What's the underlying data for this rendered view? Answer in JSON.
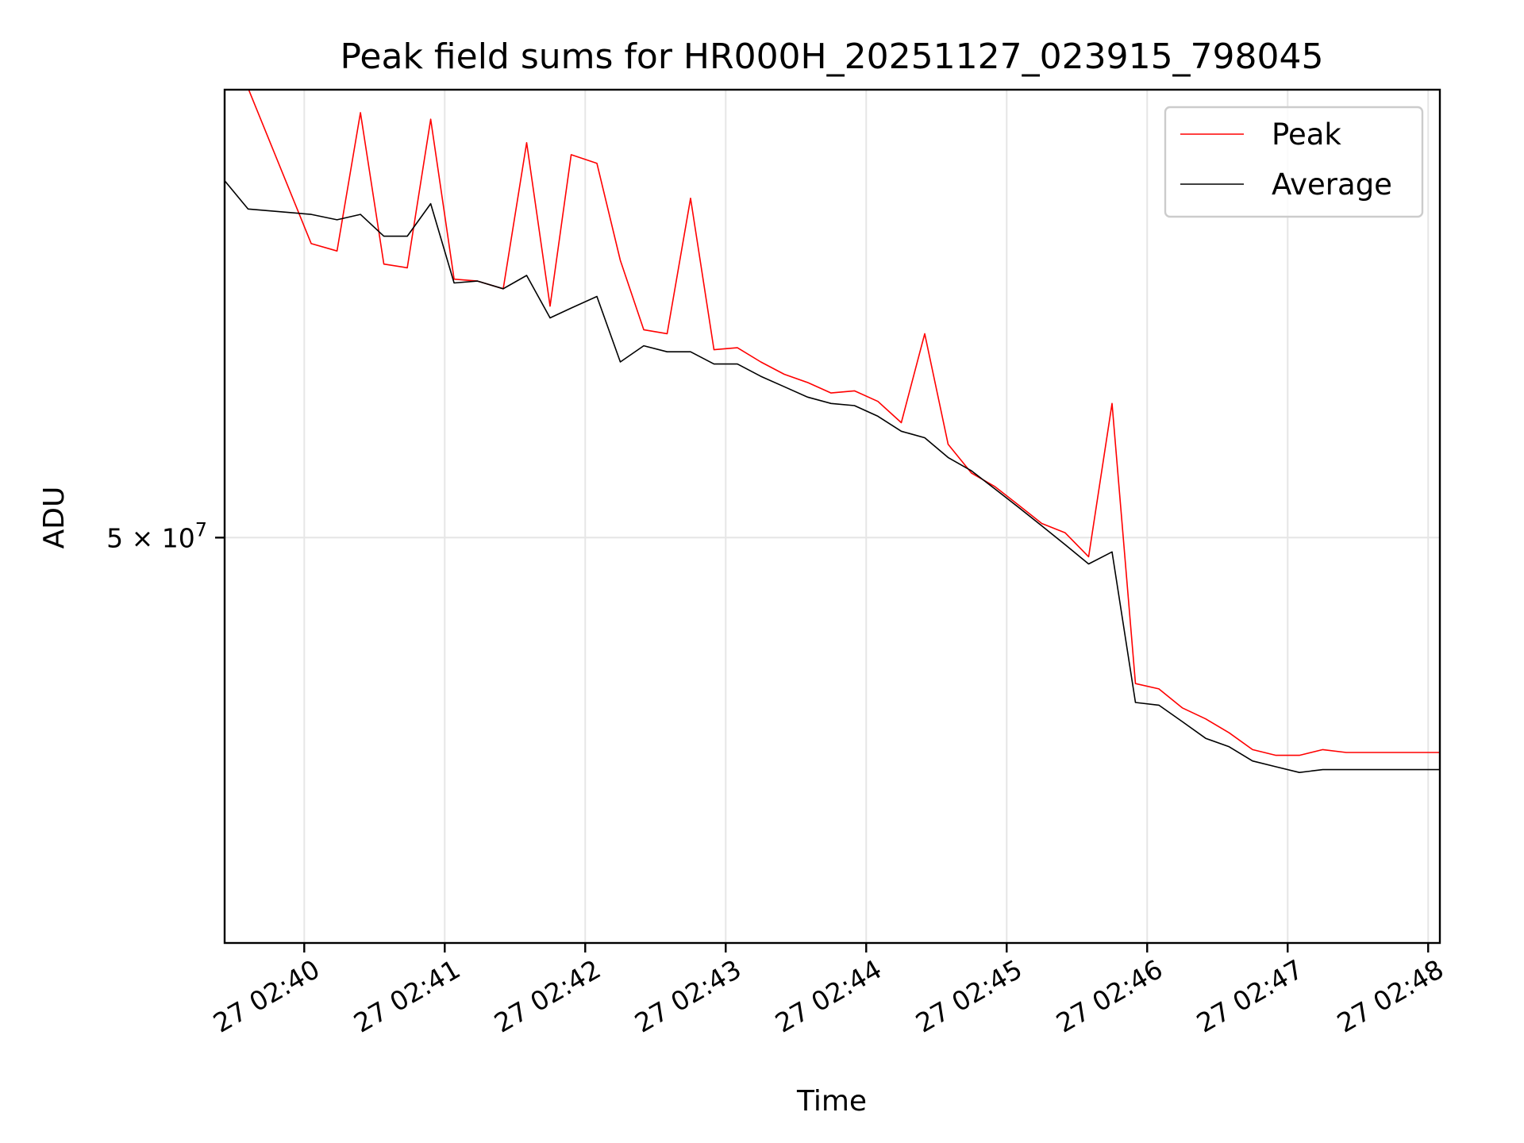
{
  "chart_data": {
    "type": "line",
    "title": "Peak field sums for HR000H_20251127_023915_798045",
    "xlabel": "Time",
    "ylabel": "ADU",
    "y_scale": "log",
    "x_ticks": [
      "27 02:40",
      "27 02:41",
      "27 02:42",
      "27 02:43",
      "27 02:44",
      "27 02:45",
      "27 02:46",
      "27 02:47",
      "27 02:48"
    ],
    "y_ticks": [
      {
        "value": 50000000,
        "label": "5 × 10^7",
        "base": "5 × 10",
        "exp": "7"
      }
    ],
    "xlim": [
      "02:39:26",
      "02:48:05"
    ],
    "ylim": [
      35500000,
      73000000
    ],
    "grid": true,
    "legend_position": "top-right",
    "x": [
      "02:39:26",
      "02:39:36",
      "02:40:03",
      "02:40:14",
      "02:40:24",
      "02:40:34",
      "02:40:44",
      "02:40:54",
      "02:41:04",
      "02:41:14",
      "02:41:25",
      "02:41:35",
      "02:41:45",
      "02:41:54",
      "02:42:05",
      "02:42:15",
      "02:42:25",
      "02:42:35",
      "02:42:45",
      "02:42:55",
      "02:43:05",
      "02:43:15",
      "02:43:25",
      "02:43:35",
      "02:43:45",
      "02:43:55",
      "02:44:05",
      "02:44:15",
      "02:44:25",
      "02:44:35",
      "02:44:45",
      "02:44:55",
      "02:45:05",
      "02:45:15",
      "02:45:25",
      "02:45:35",
      "02:45:45",
      "02:45:55",
      "02:46:05",
      "02:46:15",
      "02:46:25",
      "02:46:35",
      "02:46:45",
      "02:46:55",
      "02:47:05",
      "02:47:15",
      "02:47:25",
      "02:47:35",
      "02:47:45",
      "02:47:55",
      "02:48:05"
    ],
    "series": [
      {
        "name": "Peak",
        "color": "#ff0000",
        "values": [
          73000000,
          73100000,
          64100000,
          63700000,
          71600000,
          63000000,
          62800000,
          71200000,
          62200000,
          62100000,
          61700000,
          69800000,
          60800000,
          69100000,
          68600000,
          63200000,
          59600000,
          59400000,
          66600000,
          58600000,
          58700000,
          58000000,
          57400000,
          57000000,
          56500000,
          56600000,
          56100000,
          55100000,
          59400000,
          54100000,
          52800000,
          52200000,
          51400000,
          50600000,
          50200000,
          49200000,
          56000000,
          44200000,
          44000000,
          43300000,
          42900000,
          42400000,
          41800000,
          41600000,
          41600000,
          41800000,
          41700000,
          41700000,
          41700000,
          41700000,
          41700000
        ]
      },
      {
        "name": "Average",
        "color": "#000000",
        "values": [
          67600000,
          66000000,
          65700000,
          65400000,
          65700000,
          64500000,
          64500000,
          66300000,
          62000000,
          62100000,
          61700000,
          62400000,
          60200000,
          60700000,
          61300000,
          58000000,
          58800000,
          58500000,
          58500000,
          57900000,
          57900000,
          57300000,
          56800000,
          56300000,
          56000000,
          55900000,
          55400000,
          54700000,
          54400000,
          53500000,
          52900000,
          52100000,
          51300000,
          50500000,
          49700000,
          48900000,
          49400000,
          43500000,
          43400000,
          42800000,
          42200000,
          41900000,
          41400000,
          41200000,
          41000000,
          41100000,
          41100000,
          41100000,
          41100000,
          41100000,
          41100000
        ]
      }
    ]
  }
}
